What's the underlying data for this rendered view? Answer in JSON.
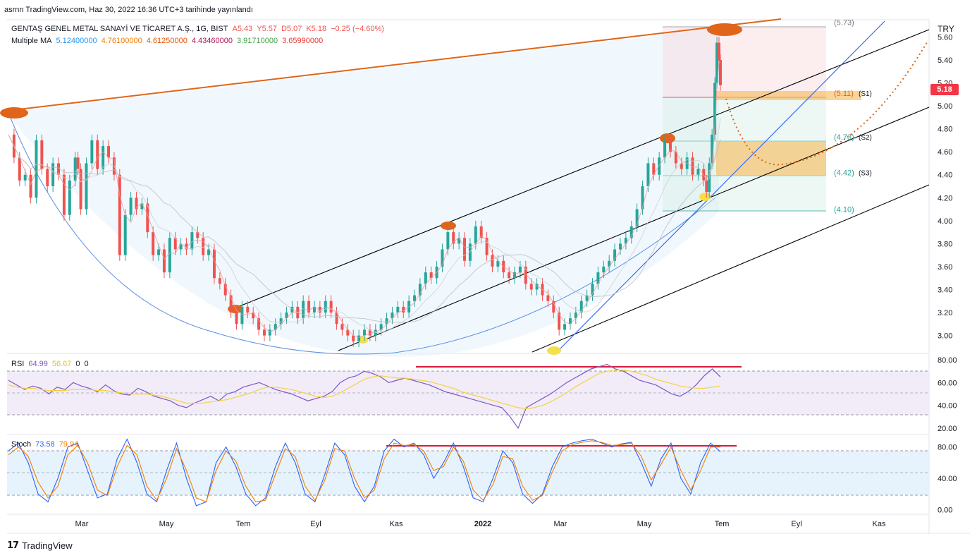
{
  "header": {
    "publish_info": "asrnn TradingView.com, Haz 30, 2022 16:36 UTC+3 tarihinde yayınlandı"
  },
  "symbol_line": {
    "name": "GENTAŞ GENEL METAL SANAYİ VE TİCARET A.Ş., 1G, BIST",
    "open": "A5.43",
    "high": "Y5.57",
    "low": "D5.07",
    "close": "K5.18",
    "change": "−0.25 (−4.60%)"
  },
  "ma_line": {
    "label": "Multiple MA",
    "values": [
      "5.12400000",
      "4.76100000",
      "4.61250000",
      "4.43460000",
      "3.91710000",
      "3.65990000"
    ]
  },
  "currency": "TRY",
  "last_price": "5.18",
  "levels": [
    {
      "label": "(5.73)",
      "tag": ""
    },
    {
      "label": "(5.11)",
      "tag": "(S1)"
    },
    {
      "label": "(4.73)",
      "tag": "(S2)"
    },
    {
      "label": "(4.42)",
      "tag": "(S3)"
    },
    {
      "label": "(4.10)",
      "tag": ""
    }
  ],
  "rsi": {
    "label": "RSI",
    "v1": "64.99",
    "v2": "56.67",
    "v3": "0",
    "v4": "0"
  },
  "stoch": {
    "label": "Stoch",
    "v1": "73.58",
    "v2": "79.94"
  },
  "footer": {
    "brand": "TradingView"
  },
  "colors": {
    "up": "#26a69a",
    "down": "#ef5350",
    "ma_blue": "#2962ff",
    "ma_yellow": "#f5d142",
    "trend_orange": "#e0651a",
    "channel": "#000000",
    "rsi_line": "#7e57c2",
    "stoch_k": "#2962ff",
    "stoch_d": "#f57c00"
  },
  "chart_data": [
    {
      "type": "candlestick",
      "title": "GENTAŞ GENEL METAL SANAYİ VE TİCARET A.Ş., 1G, BIST",
      "x_ticks": [
        "Mar",
        "May",
        "Tem",
        "Eyl",
        "Kas",
        "2022",
        "Mar",
        "May",
        "Tem",
        "Eyl",
        "Kas"
      ],
      "y_ticks": [
        "5.60",
        "5.40",
        "5.20",
        "5.00",
        "4.80",
        "4.60",
        "4.40",
        "4.20",
        "4.00",
        "3.80",
        "3.60",
        "3.40",
        "3.20",
        "3.00"
      ],
      "ylim": [
        2.85,
        5.75
      ],
      "series": [
        {
          "name": "Close",
          "points": [
            [
              0,
              4.75
            ],
            [
              8,
              4.55
            ],
            [
              16,
              4.35
            ],
            [
              24,
              4.4
            ],
            [
              32,
              4.2
            ],
            [
              40,
              4.7
            ],
            [
              48,
              4.45
            ],
            [
              56,
              4.3
            ],
            [
              64,
              4.5
            ],
            [
              72,
              4.4
            ],
            [
              80,
              4.05
            ],
            [
              88,
              4.35
            ],
            [
              96,
              4.55
            ],
            [
              100,
              4.45
            ],
            [
              104,
              4.1
            ],
            [
              112,
              4.5
            ],
            [
              120,
              4.7
            ],
            [
              128,
              4.45
            ],
            [
              136,
              4.65
            ],
            [
              144,
              4.55
            ],
            [
              152,
              4.4
            ],
            [
              160,
              3.7
            ],
            [
              168,
              4.05
            ],
            [
              176,
              4.2
            ],
            [
              184,
              4.1
            ],
            [
              192,
              4.15
            ],
            [
              200,
              3.9
            ],
            [
              208,
              3.7
            ],
            [
              216,
              3.75
            ],
            [
              224,
              3.55
            ],
            [
              232,
              3.85
            ],
            [
              240,
              3.75
            ],
            [
              248,
              3.8
            ],
            [
              256,
              3.75
            ],
            [
              264,
              3.9
            ],
            [
              272,
              3.85
            ],
            [
              280,
              3.7
            ],
            [
              288,
              3.75
            ],
            [
              296,
              3.5
            ],
            [
              304,
              3.45
            ],
            [
              312,
              3.35
            ],
            [
              320,
              3.2
            ],
            [
              328,
              3.1
            ],
            [
              336,
              3.25
            ],
            [
              344,
              3.2
            ],
            [
              352,
              3.15
            ],
            [
              360,
              3.05
            ],
            [
              368,
              3.0
            ],
            [
              376,
              3.05
            ],
            [
              384,
              3.1
            ],
            [
              392,
              3.15
            ],
            [
              400,
              3.2
            ],
            [
              408,
              3.25
            ],
            [
              416,
              3.15
            ],
            [
              424,
              3.3
            ],
            [
              432,
              3.2
            ],
            [
              440,
              3.25
            ],
            [
              448,
              3.2
            ],
            [
              456,
              3.3
            ],
            [
              464,
              3.2
            ],
            [
              472,
              3.1
            ],
            [
              480,
              3.05
            ],
            [
              488,
              3.0
            ],
            [
              496,
              2.95
            ],
            [
              504,
              3.0
            ],
            [
              512,
              3.05
            ],
            [
              520,
              3.0
            ],
            [
              528,
              3.05
            ],
            [
              536,
              3.1
            ],
            [
              544,
              3.15
            ],
            [
              552,
              3.2
            ],
            [
              560,
              3.25
            ],
            [
              568,
              3.2
            ],
            [
              576,
              3.3
            ],
            [
              584,
              3.35
            ],
            [
              592,
              3.45
            ],
            [
              600,
              3.55
            ],
            [
              608,
              3.5
            ],
            [
              616,
              3.6
            ],
            [
              624,
              3.75
            ],
            [
              632,
              3.9
            ],
            [
              640,
              3.8
            ],
            [
              648,
              3.85
            ],
            [
              656,
              3.65
            ],
            [
              664,
              3.8
            ],
            [
              672,
              3.95
            ],
            [
              680,
              3.85
            ],
            [
              688,
              3.7
            ],
            [
              696,
              3.6
            ],
            [
              704,
              3.65
            ],
            [
              712,
              3.55
            ],
            [
              720,
              3.5
            ],
            [
              728,
              3.55
            ],
            [
              736,
              3.6
            ],
            [
              744,
              3.45
            ],
            [
              752,
              3.4
            ],
            [
              760,
              3.45
            ],
            [
              768,
              3.35
            ],
            [
              776,
              3.3
            ],
            [
              784,
              3.2
            ],
            [
              792,
              3.05
            ],
            [
              800,
              3.1
            ],
            [
              808,
              3.15
            ],
            [
              816,
              3.2
            ],
            [
              824,
              3.3
            ],
            [
              832,
              3.35
            ],
            [
              840,
              3.45
            ],
            [
              848,
              3.55
            ],
            [
              856,
              3.6
            ],
            [
              864,
              3.65
            ],
            [
              872,
              3.75
            ],
            [
              880,
              3.8
            ],
            [
              888,
              3.85
            ],
            [
              896,
              3.95
            ],
            [
              904,
              4.1
            ],
            [
              912,
              4.3
            ],
            [
              920,
              4.5
            ],
            [
              928,
              4.4
            ],
            [
              936,
              4.55
            ],
            [
              944,
              4.7
            ],
            [
              952,
              4.6
            ],
            [
              960,
              4.5
            ],
            [
              968,
              4.45
            ],
            [
              976,
              4.55
            ],
            [
              984,
              4.4
            ],
            [
              992,
              4.45
            ],
            [
              1000,
              4.35
            ],
            [
              1004,
              4.25
            ],
            [
              1008,
              4.5
            ],
            [
              1012,
              4.75
            ],
            [
              1016,
              5.2
            ],
            [
              1019,
              5.55
            ],
            [
              1022,
              5.4
            ],
            [
              1024,
              5.18
            ]
          ]
        }
      ]
    },
    {
      "type": "line",
      "title": "RSI",
      "y_ticks": [
        "80.00",
        "60.00",
        "40.00",
        "20.00"
      ],
      "ylim": [
        15,
        85
      ],
      "series": [
        {
          "name": "RSI",
          "values": [
            62,
            58,
            54,
            57,
            55,
            50,
            56,
            54,
            60,
            57,
            55,
            52,
            58,
            53,
            50,
            49,
            55,
            52,
            48,
            46,
            44,
            40,
            38,
            42,
            45,
            48,
            44,
            50,
            52,
            56,
            58,
            60,
            57,
            54,
            52,
            50,
            47,
            44,
            46,
            48,
            52,
            60,
            64,
            66,
            70,
            68,
            65,
            60,
            62,
            64,
            62,
            60,
            58,
            55,
            52,
            50,
            48,
            46,
            44,
            42,
            40,
            38,
            30,
            20,
            38,
            42,
            46,
            50,
            55,
            60,
            64,
            68,
            72,
            74,
            76,
            72,
            70,
            66,
            62,
            60,
            58,
            54,
            50,
            48,
            52,
            58,
            66,
            72,
            65
          ]
        },
        {
          "name": "MA",
          "values": [
            58,
            56,
            55,
            55,
            54,
            53,
            53,
            53,
            54,
            54,
            54,
            53,
            53,
            52,
            51,
            50,
            50,
            50,
            49,
            48,
            46,
            44,
            42,
            42,
            42,
            43,
            44,
            45,
            47,
            49,
            51,
            54,
            56,
            56,
            55,
            54,
            52,
            50,
            48,
            47,
            48,
            51,
            55,
            59,
            63,
            65,
            66,
            65,
            64,
            64,
            63,
            62,
            61,
            59,
            57,
            55,
            52,
            50,
            48,
            46,
            44,
            42,
            40,
            38,
            37,
            38,
            40,
            43,
            47,
            51,
            56,
            60,
            64,
            68,
            70,
            71,
            71,
            70,
            68,
            66,
            63,
            61,
            59,
            57,
            56,
            55,
            55,
            56,
            57
          ]
        }
      ]
    },
    {
      "type": "line",
      "title": "Stoch",
      "y_ticks": [
        "80.00",
        "40.00",
        "0.00"
      ],
      "ylim": [
        -5,
        95
      ],
      "series": [
        {
          "name": "K",
          "values": [
            75,
            85,
            60,
            20,
            10,
            40,
            80,
            85,
            50,
            15,
            20,
            65,
            90,
            60,
            20,
            10,
            50,
            85,
            40,
            5,
            10,
            60,
            80,
            55,
            20,
            5,
            15,
            55,
            85,
            60,
            20,
            10,
            45,
            85,
            70,
            30,
            10,
            30,
            75,
            90,
            80,
            85,
            70,
            40,
            60,
            85,
            55,
            15,
            10,
            40,
            75,
            60,
            20,
            8,
            20,
            55,
            80,
            85,
            88,
            90,
            85,
            80,
            84,
            86,
            60,
            30,
            65,
            85,
            40,
            20,
            60,
            85,
            74
          ]
        },
        {
          "name": "D",
          "values": [
            70,
            80,
            68,
            35,
            15,
            30,
            70,
            82,
            60,
            25,
            18,
            55,
            82,
            70,
            30,
            12,
            40,
            78,
            50,
            15,
            10,
            50,
            75,
            62,
            30,
            10,
            12,
            45,
            78,
            68,
            30,
            12,
            38,
            78,
            75,
            40,
            15,
            25,
            65,
            85,
            82,
            83,
            75,
            50,
            55,
            80,
            62,
            25,
            12,
            32,
            68,
            65,
            30,
            12,
            18,
            48,
            75,
            83,
            86,
            88,
            86,
            82,
            83,
            85,
            68,
            38,
            58,
            80,
            50,
            25,
            50,
            80,
            79.94
          ]
        }
      ]
    }
  ]
}
